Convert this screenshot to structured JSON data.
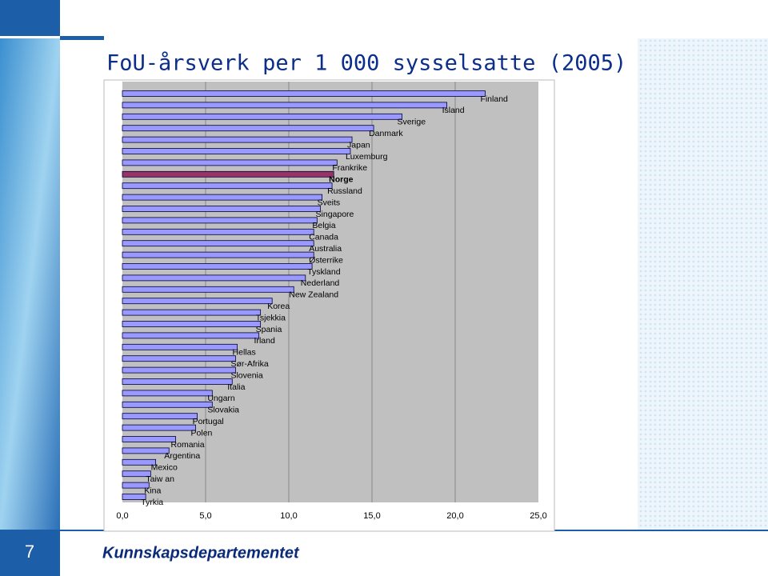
{
  "slide": {
    "title": "FoU-årsverk per 1 000 sysselsatte (2005)",
    "page_number": "7",
    "footer": "Kunnskapsdepartementet"
  },
  "chart_data": {
    "type": "hbar",
    "categories": [
      "Finland",
      "Island",
      "Sverige",
      "Danmark",
      "Japan",
      "Luxemburg",
      "Frankrike",
      "Norge",
      "Russland",
      "Sveits",
      "Singapore",
      "Belgia",
      "Canada",
      "Australia",
      "Østerrike",
      "Tyskland",
      "Nederland",
      "New Zealand",
      "Korea",
      "Tsjekkia",
      "Spania",
      "Irland",
      "Hellas",
      "Sør-Afrika",
      "Slovenia",
      "Italia",
      "Ungarn",
      "Slovakia",
      "Portugal",
      "Polen",
      "Romania",
      "Argentina",
      "Mexico",
      "Taiw an",
      "Kina",
      "Tyrkia"
    ],
    "values": [
      21.8,
      19.5,
      16.8,
      15.1,
      13.8,
      13.7,
      12.9,
      12.7,
      12.6,
      12.0,
      11.9,
      11.7,
      11.5,
      11.5,
      11.5,
      11.4,
      11.0,
      10.3,
      9.0,
      8.3,
      8.3,
      8.2,
      6.9,
      6.8,
      6.8,
      6.6,
      5.4,
      5.4,
      4.5,
      4.4,
      3.2,
      2.8,
      2.0,
      1.7,
      1.6,
      1.4
    ],
    "color": "#9999ff",
    "colors": [
      "#9999ff",
      "#9999ff",
      "#9999ff",
      "#9999ff",
      "#9999ff",
      "#9999ff",
      "#9999ff",
      "#993366",
      "#9999ff",
      "#9999ff",
      "#9999ff",
      "#9999ff",
      "#9999ff",
      "#9999ff",
      "#9999ff",
      "#9999ff",
      "#9999ff",
      "#9999ff",
      "#9999ff",
      "#9999ff",
      "#9999ff",
      "#9999ff",
      "#9999ff",
      "#9999ff",
      "#9999ff",
      "#9999ff",
      "#9999ff",
      "#9999ff",
      "#9999ff",
      "#9999ff",
      "#9999ff",
      "#9999ff",
      "#9999ff",
      "#9999ff",
      "#9999ff",
      "#9999ff"
    ],
    "xlim": [
      0,
      25
    ],
    "xticks": [
      {
        "value": 0,
        "label": "0,0"
      },
      {
        "value": 5,
        "label": "5,0"
      },
      {
        "value": 10,
        "label": "10,0"
      },
      {
        "value": 15,
        "label": "15,0"
      },
      {
        "value": 20,
        "label": "20,0"
      },
      {
        "value": 25,
        "label": "25,0"
      }
    ],
    "grid": true
  }
}
